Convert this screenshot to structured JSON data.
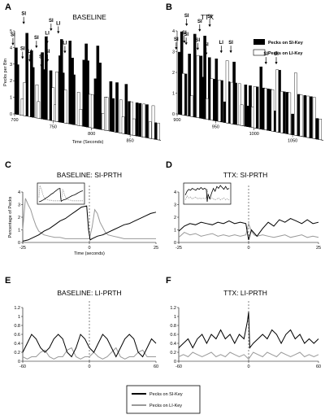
{
  "panels": [
    {
      "letter": "A",
      "title": "BASELINE"
    },
    {
      "letter": "B",
      "title": "TTX"
    },
    {
      "letter": "C",
      "title": "BASELINE: SI-PRTH"
    },
    {
      "letter": "D",
      "title": "TTX: SI-PRTH"
    },
    {
      "letter": "E",
      "title": "BASELINE: LI-PRTH"
    },
    {
      "letter": "F",
      "title": "TTX: LI-PRTH"
    }
  ],
  "legend_top": {
    "si": "Pecks on SI-Key",
    "li": "Pecks on LI-Key"
  },
  "legend_bottom": {
    "si": "Pecks on SI-Key",
    "li": "Pecks on LI-Key"
  },
  "colors": {
    "si": "#000000",
    "li": "#999999",
    "li_bar": "#ffffff"
  },
  "chart_data": [
    {
      "id": "A",
      "type": "bar",
      "title": "BASELINE",
      "xlabel": "Time (Seconds)",
      "ylabel": "Pecks per Bin",
      "x_ticks": [
        700,
        750,
        800,
        850
      ],
      "y_ticks": [
        0,
        1,
        2,
        3,
        4,
        5
      ],
      "xlim": [
        700,
        890
      ],
      "ylim": [
        0,
        5
      ],
      "series": [
        {
          "name": "Pecks on SI-Key",
          "x": [
            702,
            704,
            716,
            722,
            724,
            736,
            739,
            741,
            747,
            759,
            761,
            763,
            772,
            775,
            777,
            790,
            793,
            795,
            805,
            808,
            811,
            825,
            828,
            833,
            845,
            849,
            859,
            863,
            872,
            883
          ],
          "values": [
            4,
            3,
            5,
            4,
            3,
            4,
            3,
            5,
            3,
            4,
            5,
            3,
            5,
            4,
            3,
            4,
            5,
            4,
            3,
            5,
            4,
            3,
            2,
            3,
            3,
            2,
            2,
            2,
            2,
            1
          ]
        },
        {
          "name": "Pecks on LI-Key",
          "x": [
            710,
            713,
            729,
            731,
            750,
            753,
            755,
            766,
            783,
            786,
            798,
            801,
            815,
            818,
            820,
            838,
            841,
            852,
            855,
            868,
            876,
            880,
            887
          ],
          "values": [
            1,
            2,
            2,
            1,
            2,
            1,
            3,
            2,
            2,
            1,
            2,
            2,
            1,
            2,
            2,
            2,
            1,
            2,
            1,
            2,
            1,
            2,
            1
          ]
        }
      ],
      "annotations": [
        "SI",
        "SI",
        "SI",
        "SI",
        "LI",
        "LI",
        "SI",
        "SI",
        "SI",
        "LI",
        "LI"
      ]
    },
    {
      "id": "B",
      "type": "bar",
      "title": "TTX",
      "xlabel": "",
      "ylabel": "",
      "x_ticks": [
        900,
        950,
        1000,
        1050
      ],
      "y_ticks": [
        0,
        1,
        2,
        3,
        4
      ],
      "xlim": [
        900,
        1090
      ],
      "ylim": [
        0,
        4
      ],
      "series": [
        {
          "name": "Pecks on SI-Key",
          "x": [
            903,
            906,
            911,
            916,
            923,
            931,
            934,
            936,
            942,
            948,
            951,
            958,
            962,
            967,
            974,
            976,
            989,
            992,
            995,
            1004,
            1009,
            1012,
            1018,
            1021,
            1027,
            1033,
            1039,
            1043,
            1050,
            1058,
            1066,
            1074,
            1082
          ],
          "values": [
            3,
            4,
            2,
            3,
            4,
            3,
            2,
            4,
            3,
            2,
            3,
            2,
            1,
            2,
            3,
            2,
            2,
            1,
            2,
            2,
            3,
            2,
            2,
            2,
            1,
            3,
            2,
            2,
            1,
            2,
            2,
            2,
            1
          ]
        },
        {
          "name": "Pecks on LI-Key",
          "x": [
            908,
            919,
            927,
            939,
            945,
            955,
            965,
            971,
            981,
            984,
            998,
            1001,
            1015,
            1024,
            1030,
            1036,
            1046,
            1054,
            1061,
            1070,
            1078,
            1086
          ],
          "values": [
            2,
            1,
            3,
            1,
            2,
            2,
            3,
            2,
            2,
            1,
            1,
            2,
            2,
            2,
            3,
            2,
            2,
            3,
            2,
            2,
            2,
            1
          ]
        }
      ],
      "annotations": [
        "SI",
        "SI",
        "SI",
        "SI",
        "SI",
        "SI",
        "SI",
        "LI",
        "SI",
        "SI",
        "SI",
        "SI"
      ]
    },
    {
      "id": "C",
      "type": "line",
      "title": "BASELINE: SI-PRTH",
      "xlabel": "Time (seconds)",
      "ylabel": "Percentage of Pecks",
      "x_ticks": [
        -25,
        0,
        25
      ],
      "y_ticks": [
        0,
        1,
        2,
        3,
        4
      ],
      "xlim": [
        -25,
        25
      ],
      "ylim": [
        0,
        4
      ],
      "series": [
        {
          "name": "Pecks on SI-Key",
          "x": [
            -25,
            -23,
            -21,
            -19,
            -17,
            -15,
            -13,
            -11,
            -9,
            -7,
            -5,
            -3,
            -1,
            -0.3,
            0.3,
            1,
            3,
            5,
            7,
            9,
            11,
            13,
            15,
            17,
            19,
            21,
            23,
            25
          ],
          "values": [
            0.1,
            0.2,
            0.4,
            0.6,
            0.9,
            1.1,
            1.4,
            1.7,
            1.9,
            2.2,
            2.5,
            2.8,
            2.9,
            1.0,
            0.2,
            0.3,
            0.5,
            0.6,
            0.8,
            1.0,
            1.2,
            1.4,
            1.5,
            1.7,
            1.9,
            2.1,
            2.3,
            2.4
          ]
        },
        {
          "name": "Pecks on LI-Key",
          "x": [
            -25,
            -24,
            -23,
            -22,
            -21,
            -20,
            -19,
            -17,
            -15,
            -13,
            -11,
            -9,
            -7,
            -5,
            -3,
            -1,
            0,
            1,
            2,
            3,
            4,
            5,
            6,
            7,
            9,
            11,
            13,
            15,
            17,
            19,
            21,
            23,
            25
          ],
          "values": [
            1.0,
            3.5,
            3.0,
            2.6,
            1.9,
            1.3,
            0.9,
            0.6,
            0.5,
            0.4,
            0.4,
            0.3,
            0.3,
            0.3,
            0.3,
            0.3,
            0.3,
            1.2,
            2.6,
            2.3,
            1.6,
            1.2,
            0.8,
            0.6,
            0.5,
            0.4,
            0.3,
            0.3,
            0.3,
            0.3,
            0.3,
            0.3,
            0.3
          ]
        }
      ]
    },
    {
      "id": "D",
      "type": "line",
      "title": "TTX: SI-PRTH",
      "xlabel": "",
      "ylabel": "",
      "x_ticks": [
        -25,
        0,
        25
      ],
      "y_ticks": [
        0,
        1,
        2,
        3,
        4
      ],
      "xlim": [
        -25,
        25
      ],
      "ylim": [
        0,
        4
      ],
      "series": [
        {
          "name": "Pecks on SI-Key",
          "x": [
            -25,
            -23,
            -21,
            -19,
            -17,
            -15,
            -13,
            -11,
            -9,
            -7,
            -5,
            -3,
            -1,
            0,
            1,
            3,
            5,
            7,
            9,
            11,
            13,
            15,
            17,
            19,
            21,
            23,
            25
          ],
          "values": [
            0.9,
            1.3,
            1.5,
            1.4,
            1.6,
            1.5,
            1.4,
            1.6,
            1.5,
            1.7,
            1.5,
            1.6,
            1.5,
            0.2,
            1.0,
            0.5,
            1.1,
            1.6,
            1.3,
            1.8,
            1.6,
            1.9,
            1.7,
            1.5,
            1.8,
            1.5,
            1.6
          ]
        },
        {
          "name": "Pecks on LI-Key",
          "x": [
            -25,
            -23,
            -21,
            -19,
            -17,
            -15,
            -13,
            -11,
            -9,
            -7,
            -5,
            -3,
            -1,
            0,
            1,
            2,
            3,
            5,
            7,
            9,
            11,
            13,
            15,
            17,
            19,
            21,
            23,
            25
          ],
          "values": [
            0.4,
            0.8,
            0.6,
            0.7,
            0.5,
            0.6,
            0.7,
            0.5,
            0.6,
            0.5,
            0.6,
            0.5,
            0.6,
            1.5,
            0.9,
            0.6,
            0.5,
            0.6,
            0.5,
            0.4,
            0.5,
            0.6,
            0.4,
            0.5,
            0.6,
            0.4,
            0.5,
            0.4
          ]
        }
      ]
    },
    {
      "id": "E",
      "type": "line",
      "title": "BASELINE: LI-PRTH",
      "xlabel": "",
      "ylabel": "",
      "x_ticks": [
        -60,
        0,
        60
      ],
      "y_ticks": [
        0,
        0.2,
        0.4,
        0.6,
        0.8,
        1,
        1.2
      ],
      "xlim": [
        -60,
        60
      ],
      "ylim": [
        0,
        1.2
      ],
      "series": [
        {
          "name": "Pecks on SI-Key",
          "x": [
            -60,
            -56,
            -52,
            -48,
            -44,
            -40,
            -36,
            -32,
            -28,
            -24,
            -20,
            -16,
            -12,
            -8,
            -4,
            0,
            4,
            8,
            12,
            16,
            20,
            24,
            28,
            32,
            36,
            40,
            44,
            48,
            52,
            56,
            60
          ],
          "values": [
            0.2,
            0.4,
            0.6,
            0.5,
            0.3,
            0.2,
            0.3,
            0.5,
            0.6,
            0.5,
            0.2,
            0.1,
            0.3,
            0.6,
            0.5,
            0.3,
            0.2,
            0.4,
            0.6,
            0.5,
            0.3,
            0.1,
            0.3,
            0.5,
            0.6,
            0.5,
            0.2,
            0.1,
            0.3,
            0.5,
            0.4
          ]
        },
        {
          "name": "Pecks on LI-Key",
          "x": [
            -60,
            -56,
            -52,
            -48,
            -44,
            -40,
            -36,
            -32,
            -28,
            -24,
            -20,
            -16,
            -12,
            -8,
            -4,
            0,
            4,
            8,
            12,
            16,
            20,
            24,
            28,
            32,
            36,
            40,
            44,
            48,
            52,
            56,
            60
          ],
          "values": [
            0.1,
            0.05,
            0.1,
            0.1,
            0.2,
            0.25,
            0.1,
            0.05,
            0.1,
            0.1,
            0.25,
            0.3,
            0.1,
            0.05,
            0.1,
            0.1,
            0.2,
            0.1,
            0.05,
            0.1,
            0.2,
            0.3,
            0.1,
            0.05,
            0.1,
            0.1,
            0.2,
            0.25,
            0.1,
            0.1,
            0.1
          ]
        }
      ]
    },
    {
      "id": "F",
      "type": "line",
      "title": "TTX: LI-PRTH",
      "xlabel": "",
      "ylabel": "",
      "x_ticks": [
        -60,
        0,
        60
      ],
      "y_ticks": [
        0,
        0.2,
        0.4,
        0.6,
        0.8,
        1,
        1.2
      ],
      "xlim": [
        -60,
        60
      ],
      "ylim": [
        0,
        1.2
      ],
      "series": [
        {
          "name": "Pecks on SI-Key",
          "x": [
            -60,
            -56,
            -52,
            -48,
            -44,
            -40,
            -36,
            -32,
            -28,
            -24,
            -20,
            -16,
            -12,
            -8,
            -4,
            -1,
            0,
            1,
            4,
            8,
            12,
            16,
            20,
            24,
            28,
            32,
            36,
            40,
            44,
            48,
            52,
            56,
            60
          ],
          "values": [
            0.3,
            0.4,
            0.5,
            0.3,
            0.5,
            0.6,
            0.4,
            0.6,
            0.5,
            0.7,
            0.5,
            0.6,
            0.4,
            0.6,
            0.5,
            0.9,
            1.1,
            0.3,
            0.4,
            0.5,
            0.6,
            0.5,
            0.7,
            0.6,
            0.4,
            0.6,
            0.7,
            0.5,
            0.6,
            0.4,
            0.5,
            0.4,
            0.5
          ]
        },
        {
          "name": "Pecks on LI-Key",
          "x": [
            -60,
            -56,
            -52,
            -48,
            -44,
            -40,
            -36,
            -32,
            -28,
            -24,
            -20,
            -16,
            -12,
            -8,
            -4,
            0,
            4,
            8,
            12,
            16,
            20,
            24,
            28,
            32,
            36,
            40,
            44,
            48,
            52,
            56,
            60
          ],
          "values": [
            0.1,
            0.15,
            0.1,
            0.2,
            0.15,
            0.1,
            0.15,
            0.2,
            0.1,
            0.15,
            0.1,
            0.2,
            0.15,
            0.1,
            0.15,
            0.05,
            0.2,
            0.15,
            0.1,
            0.2,
            0.15,
            0.1,
            0.2,
            0.15,
            0.1,
            0.15,
            0.2,
            0.1,
            0.15,
            0.1,
            0.15
          ]
        }
      ]
    }
  ]
}
